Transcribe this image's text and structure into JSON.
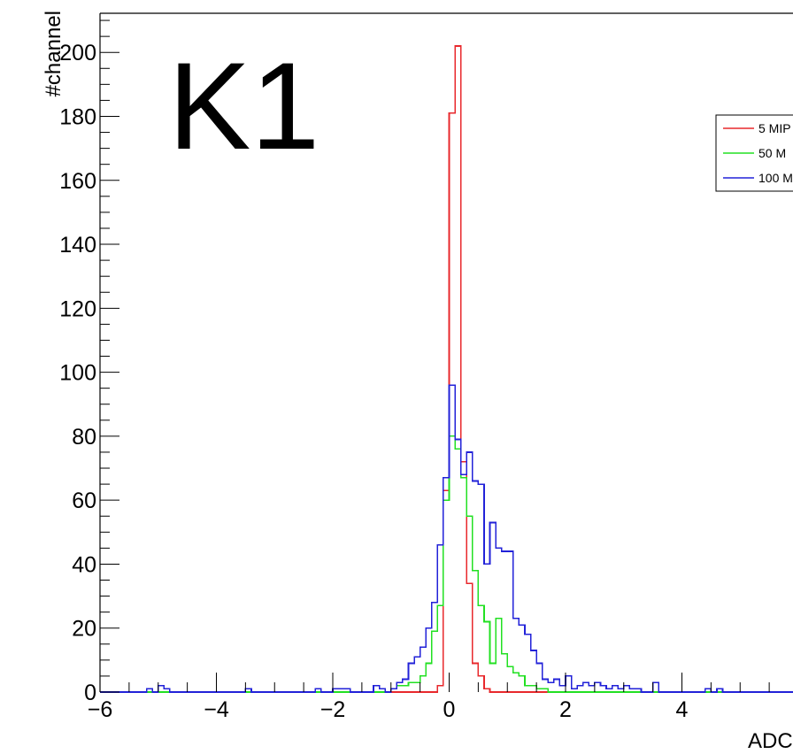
{
  "chart_data": {
    "type": "histogram",
    "title": "",
    "big_label": "K1",
    "xlabel": "ADC",
    "ylabel": "#channel",
    "xlim": [
      -6,
      6
    ],
    "ylim": [
      0,
      212
    ],
    "bin_width": 0.1,
    "x_ticks": [
      -6,
      -4,
      -2,
      0,
      2,
      4
    ],
    "x_tick_labels": [
      "−6",
      "−4",
      "−2",
      "0",
      "2",
      "4"
    ],
    "y_ticks": [
      0,
      20,
      40,
      60,
      80,
      100,
      120,
      140,
      160,
      180,
      200
    ],
    "y_tick_labels": [
      "0",
      "20",
      "40",
      "60",
      "80",
      "100",
      "120",
      "140",
      "160",
      "180",
      "200"
    ],
    "legend_position": "top-right",
    "series": [
      {
        "name": "5 MIP",
        "color": "#e8282c",
        "bins": [
          [
            -0.2,
            2
          ],
          [
            -0.1,
            63
          ],
          [
            0.0,
            181
          ],
          [
            0.1,
            202
          ],
          [
            0.2,
            72
          ],
          [
            0.3,
            34
          ],
          [
            0.4,
            9
          ],
          [
            0.5,
            5
          ],
          [
            0.6,
            1
          ]
        ]
      },
      {
        "name": "50 M",
        "color": "#22e022",
        "bins": [
          [
            -1.0,
            1
          ],
          [
            -0.9,
            2
          ],
          [
            -0.8,
            2
          ],
          [
            -0.7,
            3
          ],
          [
            -0.6,
            3
          ],
          [
            -0.5,
            5
          ],
          [
            -0.4,
            9
          ],
          [
            -0.3,
            19
          ],
          [
            -0.2,
            27
          ],
          [
            -0.1,
            60
          ],
          [
            0.0,
            80
          ],
          [
            0.1,
            76
          ],
          [
            0.2,
            67
          ],
          [
            0.3,
            55
          ],
          [
            0.4,
            38
          ],
          [
            0.5,
            27
          ],
          [
            0.6,
            22
          ],
          [
            0.7,
            9
          ],
          [
            0.8,
            23
          ],
          [
            0.9,
            12
          ],
          [
            1.0,
            8
          ],
          [
            1.1,
            6
          ],
          [
            1.2,
            5
          ],
          [
            1.3,
            2
          ],
          [
            1.4,
            2
          ],
          [
            1.5,
            1
          ],
          [
            1.6,
            1
          ]
        ]
      },
      {
        "name": "100 M",
        "color": "#2222d8",
        "bins": [
          [
            -5.2,
            1
          ],
          [
            -5.0,
            2
          ],
          [
            -4.9,
            1
          ],
          [
            -3.5,
            1
          ],
          [
            -2.3,
            1
          ],
          [
            -2.0,
            1
          ],
          [
            -1.9,
            1
          ],
          [
            -1.8,
            1
          ],
          [
            -1.3,
            2
          ],
          [
            -1.2,
            1
          ],
          [
            -1.0,
            1
          ],
          [
            -0.9,
            3
          ],
          [
            -0.8,
            4
          ],
          [
            -0.7,
            9
          ],
          [
            -0.6,
            11
          ],
          [
            -0.5,
            14
          ],
          [
            -0.4,
            20
          ],
          [
            -0.3,
            28
          ],
          [
            -0.2,
            46
          ],
          [
            -0.1,
            67
          ],
          [
            0.0,
            96
          ],
          [
            0.1,
            79
          ],
          [
            0.2,
            68
          ],
          [
            0.3,
            75
          ],
          [
            0.4,
            66
          ],
          [
            0.5,
            65
          ],
          [
            0.6,
            40
          ],
          [
            0.7,
            53
          ],
          [
            0.8,
            45
          ],
          [
            0.9,
            44
          ],
          [
            1.0,
            44
          ],
          [
            1.1,
            23
          ],
          [
            1.2,
            21
          ],
          [
            1.3,
            18
          ],
          [
            1.4,
            13
          ],
          [
            1.5,
            9
          ],
          [
            1.6,
            4
          ],
          [
            1.7,
            3
          ],
          [
            1.8,
            4
          ],
          [
            1.9,
            2
          ],
          [
            2.0,
            5
          ],
          [
            2.1,
            1
          ],
          [
            2.2,
            2
          ],
          [
            2.3,
            3
          ],
          [
            2.4,
            2
          ],
          [
            2.5,
            3
          ],
          [
            2.6,
            2
          ],
          [
            2.7,
            1
          ],
          [
            2.8,
            2
          ],
          [
            2.9,
            1
          ],
          [
            3.0,
            2
          ],
          [
            3.1,
            1
          ],
          [
            3.2,
            1
          ],
          [
            3.5,
            3
          ],
          [
            4.4,
            1
          ],
          [
            4.6,
            1
          ]
        ]
      }
    ]
  }
}
